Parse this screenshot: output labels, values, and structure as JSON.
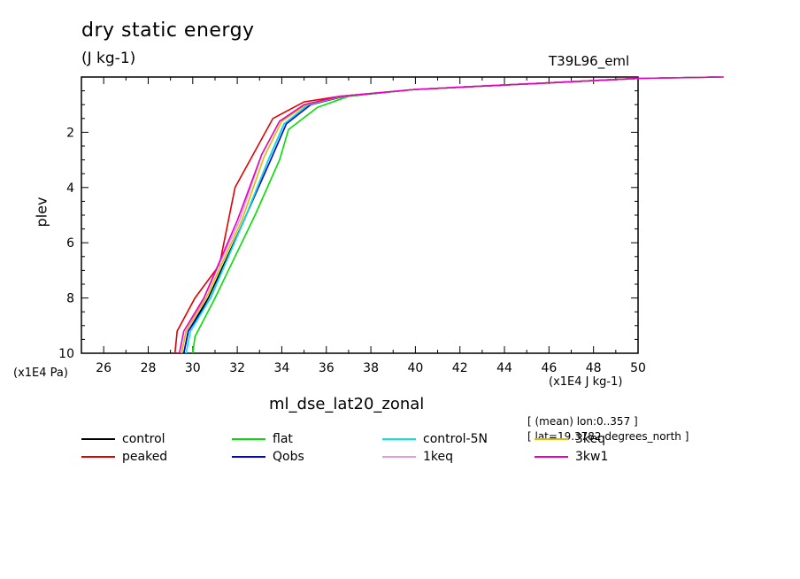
{
  "chart_data": {
    "type": "line",
    "title": "dry static energy",
    "units": "(J kg-1)",
    "run_id": "T39L96_eml",
    "xlabel": "ml_dse_lat20_zonal",
    "xunit": "(x1E4 J kg-1)",
    "ylabel": "plev",
    "yunit": "(x1E4 Pa)",
    "xlim": [
      25,
      50
    ],
    "ylim": [
      10,
      0
    ],
    "y_inverted": true,
    "xticks": [
      26,
      28,
      30,
      32,
      34,
      36,
      38,
      40,
      42,
      44,
      46,
      48,
      50
    ],
    "yticks": [
      2,
      4,
      6,
      8,
      10
    ],
    "meta": [
      "[ (mean) lon:0..357 ]",
      "[ lat=19.3782 degrees_north ]"
    ],
    "series": [
      {
        "name": "control",
        "color": "#000000",
        "x": [
          29.6,
          29.8,
          30.7,
          32.3,
          33.4,
          34.1,
          35.2,
          36.7,
          40.0,
          45.0,
          50.0
        ],
        "y": [
          10,
          9.2,
          8.0,
          5.2,
          3.0,
          1.7,
          1.0,
          0.7,
          0.45,
          0.25,
          0.05
        ]
      },
      {
        "name": "peaked",
        "color": "#e00000",
        "x": [
          29.2,
          29.3,
          30.1,
          31.2,
          31.9,
          33.6,
          35.0,
          36.6,
          40.0,
          45.0,
          50.0
        ],
        "y": [
          10,
          9.2,
          8.0,
          6.8,
          4.0,
          1.5,
          0.9,
          0.7,
          0.45,
          0.25,
          0.05
        ]
      },
      {
        "name": "flat",
        "color": "#00e000",
        "x": [
          30.0,
          30.1,
          31.0,
          32.8,
          33.9,
          34.3,
          35.6,
          37.0,
          40.0,
          45.0,
          50.0
        ],
        "y": [
          10,
          9.4,
          8.0,
          5.0,
          3.0,
          1.9,
          1.1,
          0.7,
          0.45,
          0.25,
          0.05
        ]
      },
      {
        "name": "Qobs",
        "color": "#0000e0",
        "x": [
          29.6,
          29.8,
          30.8,
          32.4,
          33.5,
          34.2,
          35.3,
          36.8,
          40.0,
          45.0,
          50.0
        ],
        "y": [
          10,
          9.2,
          8.0,
          5.0,
          3.0,
          1.7,
          1.0,
          0.7,
          0.45,
          0.25,
          0.05
        ]
      },
      {
        "name": "control-5N",
        "color": "#00e5e5",
        "x": [
          29.7,
          29.9,
          30.8,
          32.3,
          33.4,
          34.1,
          35.2,
          36.7,
          40.0,
          45.0,
          50.0
        ],
        "y": [
          10,
          9.2,
          8.0,
          5.2,
          3.0,
          1.7,
          1.0,
          0.7,
          0.45,
          0.25,
          0.05
        ]
      },
      {
        "name": "1keq",
        "color": "#e599e5",
        "x": [
          29.5,
          29.7,
          30.5,
          32.1,
          33.1,
          33.9,
          35.1,
          36.6,
          40.0,
          45.0,
          50.0
        ],
        "y": [
          10,
          9.2,
          8.0,
          5.2,
          2.8,
          1.6,
          1.0,
          0.7,
          0.45,
          0.25,
          0.05
        ]
      },
      {
        "name": "3keq",
        "color": "#e5b800",
        "x": [
          29.5,
          29.7,
          30.6,
          32.2,
          33.2,
          34.0,
          35.1,
          36.7,
          40.0,
          45.0,
          50.0
        ],
        "y": [
          10,
          9.2,
          8.0,
          5.2,
          2.9,
          1.6,
          1.0,
          0.7,
          0.45,
          0.25,
          0.05
        ]
      },
      {
        "name": "3kw1",
        "color": "#e500c0",
        "x": [
          29.4,
          29.6,
          30.5,
          32.0,
          33.1,
          33.9,
          35.0,
          36.6,
          40.0,
          45.0,
          50.0
        ],
        "y": [
          10,
          9.2,
          8.0,
          5.2,
          2.8,
          1.6,
          1.0,
          0.7,
          0.45,
          0.25,
          0.05
        ]
      }
    ],
    "legend": [
      {
        "name": "control",
        "color": "#000000"
      },
      {
        "name": "flat",
        "color": "#00e000"
      },
      {
        "name": "control-5N",
        "color": "#00e5e5"
      },
      {
        "name": "3keq",
        "color": "#e5b800"
      },
      {
        "name": "peaked",
        "color": "#e00000"
      },
      {
        "name": "Qobs",
        "color": "#0000e0"
      },
      {
        "name": "1keq",
        "color": "#e599e5"
      },
      {
        "name": "3kw1",
        "color": "#e500c0"
      }
    ]
  }
}
